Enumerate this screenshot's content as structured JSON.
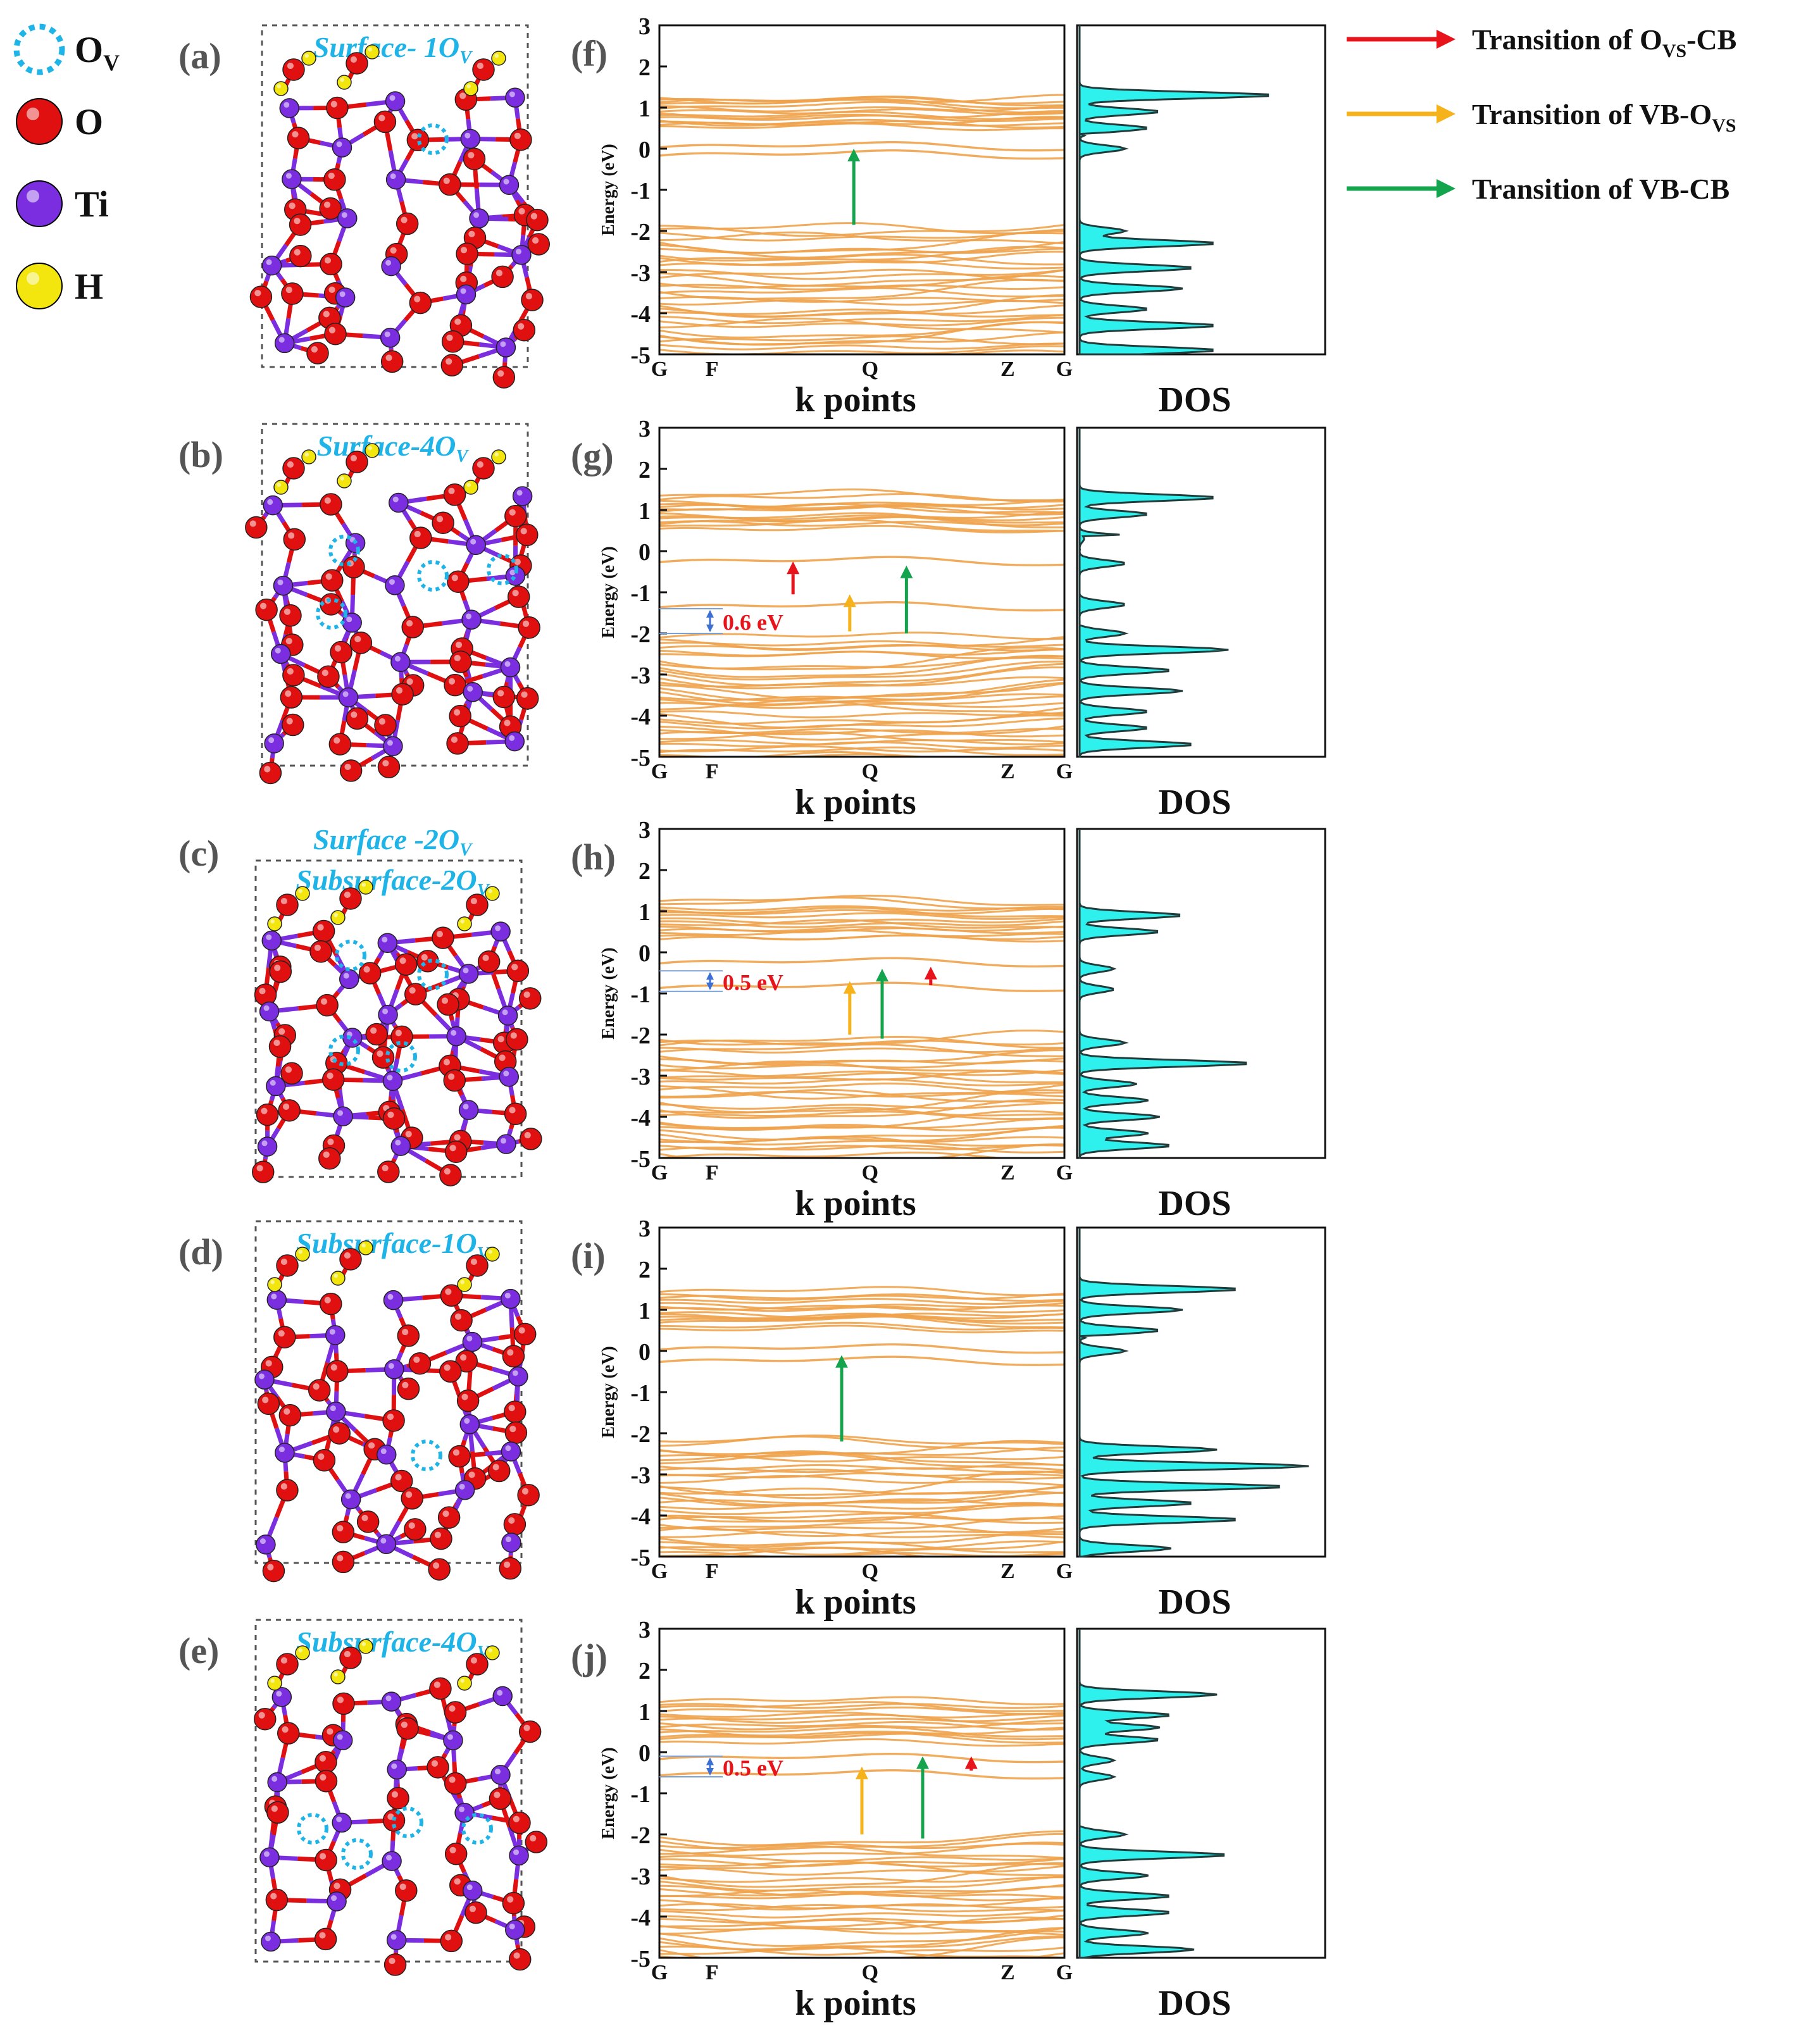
{
  "colors": {
    "band": "#f0a24a",
    "dos_fill": "#2ef0ec",
    "dos_line": "#223b3b",
    "red": "#e8141c",
    "yellow": "#f6b21b",
    "green": "#15a44e",
    "title": "#1fb4e8",
    "label_gray": "#555555",
    "O_atom": "#e01010",
    "Ti_atom": "#7a2ee0",
    "H_atom": "#f2e60e",
    "gap_arrow": "#3b6fd4",
    "gap_text": "#e8141c"
  },
  "atom_legend": [
    {
      "symbol": "O",
      "sub": "V",
      "kind": "vacancy"
    },
    {
      "symbol": "O",
      "sub": "",
      "kind": "O"
    },
    {
      "symbol": "Ti",
      "sub": "",
      "kind": "Ti"
    },
    {
      "symbol": "H",
      "sub": "",
      "kind": "H"
    }
  ],
  "transition_legend": [
    {
      "color": "red",
      "text": "Transition of O",
      "sub": "VS",
      "tail": "-CB"
    },
    {
      "color": "yellow",
      "text": "Transition of VB-O",
      "sub": "VS",
      "tail": ""
    },
    {
      "color": "green",
      "text": "Transition of VB-CB",
      "sub": "",
      "tail": ""
    }
  ],
  "structures": [
    {
      "label": "(a)",
      "title_lines": [
        {
          "main": "Surface- 1O",
          "sub": "V"
        }
      ],
      "vacancies": 1
    },
    {
      "label": "(b)",
      "title_lines": [
        {
          "main": "Surface-4O",
          "sub": "V"
        }
      ],
      "vacancies": 4
    },
    {
      "label": "(c)",
      "title_lines": [
        {
          "main": "Surface -2O",
          "sub": "V"
        },
        {
          "main": "Subsurface-2O",
          "sub": "V"
        }
      ],
      "vacancies": 4
    },
    {
      "label": "(d)",
      "title_lines": [
        {
          "main": "Subsurface-1O",
          "sub": "V"
        }
      ],
      "vacancies": 1
    },
    {
      "label": "(e)",
      "title_lines": [
        {
          "main": "Subsurface-4O",
          "sub": "V"
        }
      ],
      "vacancies": 4
    }
  ],
  "chart_data": [
    {
      "type": "line",
      "panel": "(f)",
      "xlabel": "k points",
      "ylabel": "Energy (eV)",
      "dos_label": "DOS",
      "x_ticks": [
        "G",
        "F",
        "Q",
        "Z",
        "G"
      ],
      "x_tick_positions": [
        0,
        0.13,
        0.52,
        0.86,
        1.0
      ],
      "ylim": [
        -5,
        3
      ],
      "y_ticks": [
        3,
        2,
        1,
        0,
        -1,
        -2,
        -3,
        -4,
        -5
      ],
      "valence_band": [
        -5,
        -1.8
      ],
      "conduction_band": [
        0.6,
        1.3
      ],
      "defect_levels": [
        -0.2,
        0.0
      ],
      "gap_annotation": null,
      "transitions": [
        {
          "kind": "green",
          "x": 0.48,
          "from": -1.85,
          "to": 0.0
        }
      ],
      "dos_peaks": [
        [
          -4.9,
          0.6
        ],
        [
          -4.3,
          0.6
        ],
        [
          -3.9,
          0.3
        ],
        [
          -3.4,
          0.45
        ],
        [
          -2.9,
          0.5
        ],
        [
          -2.3,
          0.6
        ],
        [
          -2.0,
          0.2
        ],
        [
          0.0,
          0.2
        ],
        [
          0.5,
          0.3
        ],
        [
          0.9,
          0.35
        ],
        [
          1.3,
          0.85
        ]
      ]
    },
    {
      "type": "line",
      "panel": "(g)",
      "xlabel": "k points",
      "ylabel": "Energy (eV)",
      "dos_label": "DOS",
      "x_ticks": [
        "G",
        "F",
        "Q",
        "Z",
        "G"
      ],
      "x_tick_positions": [
        0,
        0.13,
        0.52,
        0.86,
        1.0
      ],
      "ylim": [
        -5,
        3
      ],
      "y_ticks": [
        3,
        2,
        1,
        0,
        -1,
        -2,
        -3,
        -4,
        -5
      ],
      "valence_band": [
        -5,
        -2.0
      ],
      "conduction_band": [
        0.6,
        1.4
      ],
      "defect_levels": [
        -0.3,
        -1.4
      ],
      "gap_annotation": {
        "text": "0.6 eV",
        "from": -2.0,
        "to": -1.4
      },
      "transitions": [
        {
          "kind": "red",
          "x": 0.33,
          "from": -1.05,
          "to": -0.25
        },
        {
          "kind": "yellow",
          "x": 0.47,
          "from": -1.95,
          "to": -1.05
        },
        {
          "kind": "green",
          "x": 0.61,
          "from": -2.0,
          "to": -0.35
        }
      ],
      "dos_peaks": [
        [
          -4.7,
          0.5
        ],
        [
          -4.3,
          0.3
        ],
        [
          -3.9,
          0.3
        ],
        [
          -3.4,
          0.45
        ],
        [
          -2.9,
          0.4
        ],
        [
          -2.4,
          0.65
        ],
        [
          -2.0,
          0.2
        ],
        [
          -1.3,
          0.2
        ],
        [
          -0.3,
          0.2
        ],
        [
          0.3,
          0.4
        ],
        [
          0.9,
          0.3
        ],
        [
          1.3,
          0.6
        ]
      ]
    },
    {
      "type": "line",
      "panel": "(h)",
      "xlabel": "k points",
      "ylabel": "Energy (eV)",
      "dos_label": "DOS",
      "x_ticks": [
        "G",
        "F",
        "Q",
        "Z",
        "G"
      ],
      "x_tick_positions": [
        0,
        0.13,
        0.52,
        0.86,
        1.0
      ],
      "ylim": [
        -5,
        3
      ],
      "y_ticks": [
        3,
        2,
        1,
        0,
        -1,
        -2,
        -3,
        -4,
        -5
      ],
      "valence_band": [
        -5,
        -2.0
      ],
      "conduction_band": [
        0.4,
        1.3
      ],
      "defect_levels": [
        -0.3,
        -0.9
      ],
      "gap_annotation": {
        "text": "0.5 eV",
        "from": -0.95,
        "to": -0.45
      },
      "transitions": [
        {
          "kind": "yellow",
          "x": 0.47,
          "from": -2.0,
          "to": -0.7
        },
        {
          "kind": "green",
          "x": 0.55,
          "from": -2.1,
          "to": -0.4
        },
        {
          "kind": "red",
          "x": 0.67,
          "from": -0.8,
          "to": -0.35
        }
      ],
      "dos_peaks": [
        [
          -4.7,
          0.4
        ],
        [
          -4.4,
          0.3
        ],
        [
          -4.0,
          0.35
        ],
        [
          -3.6,
          0.3
        ],
        [
          -3.2,
          0.25
        ],
        [
          -2.7,
          0.75
        ],
        [
          -2.2,
          0.2
        ],
        [
          -0.9,
          0.15
        ],
        [
          -0.4,
          0.15
        ],
        [
          0.5,
          0.35
        ],
        [
          0.9,
          0.45
        ]
      ]
    },
    {
      "type": "line",
      "panel": "(i)",
      "xlabel": "k points",
      "ylabel": "Energy (eV)",
      "dos_label": "DOS",
      "x_ticks": [
        "G",
        "F",
        "Q",
        "Z",
        "G"
      ],
      "x_tick_positions": [
        0,
        0.13,
        0.52,
        0.86,
        1.0
      ],
      "ylim": [
        -5,
        3
      ],
      "y_ticks": [
        3,
        2,
        1,
        0,
        -1,
        -2,
        -3,
        -4,
        -5
      ],
      "valence_band": [
        -5,
        -2.1
      ],
      "conduction_band": [
        0.6,
        1.5
      ],
      "defect_levels": [
        -0.3,
        0.0
      ],
      "gap_annotation": null,
      "transitions": [
        {
          "kind": "green",
          "x": 0.45,
          "from": -2.2,
          "to": -0.1
        }
      ],
      "dos_peaks": [
        [
          -4.8,
          0.4
        ],
        [
          -4.1,
          0.7
        ],
        [
          -3.7,
          0.5
        ],
        [
          -3.3,
          0.9
        ],
        [
          -2.8,
          1.0
        ],
        [
          -2.4,
          0.6
        ],
        [
          0.0,
          0.2
        ],
        [
          0.5,
          0.35
        ],
        [
          1.0,
          0.45
        ],
        [
          1.5,
          0.7
        ]
      ]
    },
    {
      "type": "line",
      "panel": "(j)",
      "xlabel": "k points",
      "ylabel": "Energy (eV)",
      "dos_label": "DOS",
      "x_ticks": [
        "G",
        "F",
        "Q",
        "Z",
        "G"
      ],
      "x_tick_positions": [
        0,
        0.13,
        0.52,
        0.86,
        1.0
      ],
      "ylim": [
        -5,
        3
      ],
      "y_ticks": [
        3,
        2,
        1,
        0,
        -1,
        -2,
        -3,
        -4,
        -5
      ],
      "valence_band": [
        -5,
        -2.0
      ],
      "conduction_band": [
        0.3,
        1.3
      ],
      "defect_levels": [
        -0.2,
        -0.6
      ],
      "gap_annotation": {
        "text": "0.5 eV",
        "from": -0.6,
        "to": -0.1
      },
      "transitions": [
        {
          "kind": "yellow",
          "x": 0.5,
          "from": -2.0,
          "to": -0.35
        },
        {
          "kind": "green",
          "x": 0.65,
          "from": -2.1,
          "to": -0.1
        },
        {
          "kind": "red",
          "x": 0.77,
          "from": -0.45,
          "to": -0.1
        }
      ],
      "dos_peaks": [
        [
          -4.8,
          0.5
        ],
        [
          -4.4,
          0.3
        ],
        [
          -3.9,
          0.4
        ],
        [
          -3.5,
          0.4
        ],
        [
          -3.0,
          0.3
        ],
        [
          -2.5,
          0.65
        ],
        [
          -2.0,
          0.2
        ],
        [
          -0.6,
          0.15
        ],
        [
          -0.2,
          0.15
        ],
        [
          0.3,
          0.35
        ],
        [
          0.6,
          0.35
        ],
        [
          0.9,
          0.4
        ],
        [
          1.4,
          0.6
        ]
      ]
    }
  ]
}
